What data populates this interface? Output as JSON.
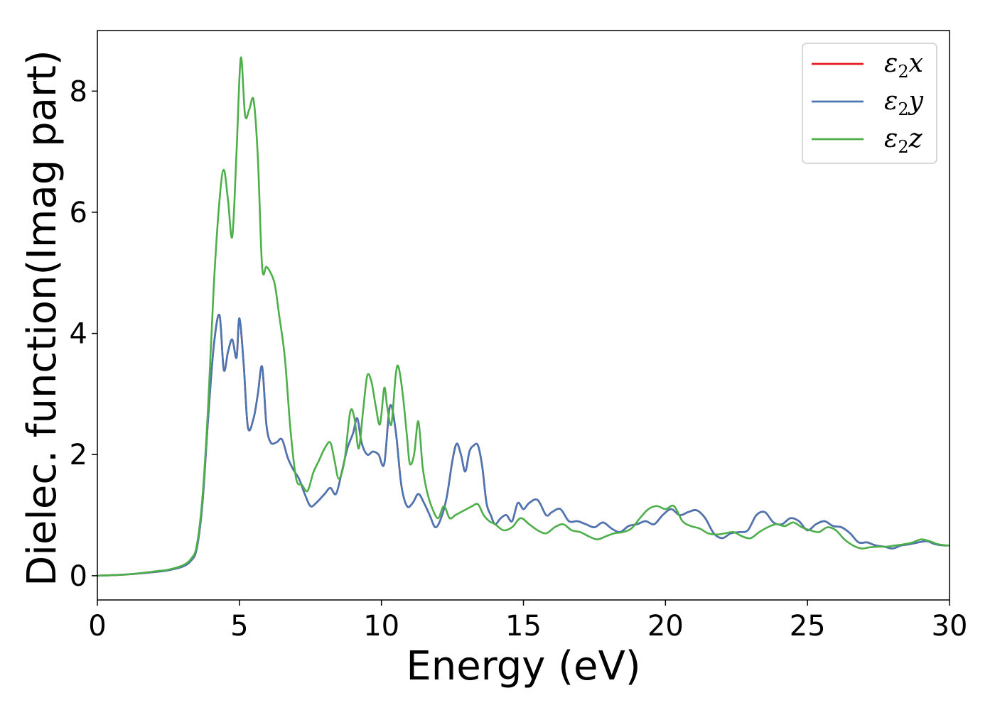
{
  "chart_data": {
    "type": "line",
    "title": "",
    "xlabel": "Energy (eV)",
    "ylabel": "Dielec. function(Imag part)",
    "xlim": [
      0,
      30
    ],
    "ylim": [
      -0.4,
      9.0
    ],
    "xticks": [
      0,
      5,
      10,
      15,
      20,
      25,
      30
    ],
    "xtick_labels": [
      "0",
      "5",
      "10",
      "15",
      "20",
      "25",
      "30"
    ],
    "yticks": [
      0,
      2,
      4,
      6,
      8
    ],
    "ytick_labels": [
      "0",
      "2",
      "4",
      "6",
      "8"
    ],
    "grid": false,
    "legend_position": "top-right",
    "series": [
      {
        "name": "ε2x",
        "legend_symbol": "ε",
        "legend_subscript": "2",
        "legend_var": "x",
        "color": "#e41a1c",
        "x": [
          0,
          1,
          2,
          2.5,
          3,
          3.3,
          3.5,
          3.7,
          3.9,
          4.1,
          4.3,
          4.45,
          4.6,
          4.75,
          4.9,
          5.0,
          5.15,
          5.3,
          5.5,
          5.65,
          5.8,
          5.95,
          6.1,
          6.3,
          6.5,
          6.7,
          6.9,
          7.1,
          7.3,
          7.5,
          7.7,
          8.0,
          8.2,
          8.4,
          8.6,
          8.8,
          9.0,
          9.15,
          9.3,
          9.5,
          9.7,
          9.9,
          10.1,
          10.3,
          10.5,
          10.7,
          10.9,
          11.1,
          11.3,
          11.5,
          11.7,
          11.9,
          12.1,
          12.3,
          12.5,
          12.65,
          12.8,
          12.95,
          13.1,
          13.25,
          13.4,
          13.55,
          13.7,
          13.85,
          14.0,
          14.2,
          14.4,
          14.6,
          14.8,
          15.0,
          15.2,
          15.5,
          15.8,
          16.0,
          16.3,
          16.6,
          16.9,
          17.2,
          17.5,
          17.8,
          18.1,
          18.4,
          18.7,
          19.0,
          19.3,
          19.6,
          19.9,
          20.2,
          20.5,
          20.8,
          21.1,
          21.4,
          21.7,
          22.0,
          22.3,
          22.6,
          22.9,
          23.2,
          23.5,
          23.8,
          24.1,
          24.4,
          24.7,
          25.0,
          25.3,
          25.6,
          25.9,
          26.2,
          26.5,
          26.8,
          27.1,
          27.4,
          27.7,
          28.0,
          28.3,
          28.6,
          28.9,
          29.2,
          29.5,
          29.8,
          30
        ],
        "y": [
          0.0,
          0.02,
          0.06,
          0.09,
          0.15,
          0.25,
          0.45,
          1.2,
          2.6,
          3.8,
          4.3,
          3.4,
          3.7,
          3.9,
          3.6,
          4.25,
          3.5,
          2.45,
          2.6,
          3.0,
          3.45,
          2.5,
          2.2,
          2.2,
          2.25,
          1.95,
          1.75,
          1.6,
          1.35,
          1.15,
          1.2,
          1.35,
          1.45,
          1.35,
          1.7,
          2.1,
          2.35,
          2.6,
          2.2,
          2.0,
          2.05,
          2.0,
          1.85,
          2.8,
          2.4,
          1.5,
          1.15,
          1.2,
          1.35,
          1.2,
          1.0,
          0.8,
          0.95,
          1.3,
          1.9,
          2.18,
          2.0,
          1.72,
          2.05,
          2.15,
          2.15,
          1.8,
          1.2,
          1.0,
          0.85,
          0.95,
          1.0,
          0.9,
          1.2,
          1.1,
          1.2,
          1.25,
          1.0,
          1.05,
          1.1,
          0.9,
          0.9,
          0.85,
          0.8,
          0.88,
          0.78,
          0.72,
          0.82,
          0.85,
          0.9,
          0.85,
          1.0,
          1.1,
          1.0,
          1.05,
          1.08,
          0.95,
          0.7,
          0.62,
          0.7,
          0.72,
          0.75,
          1.0,
          1.05,
          0.88,
          0.85,
          0.95,
          0.9,
          0.75,
          0.85,
          0.9,
          0.82,
          0.8,
          0.7,
          0.55,
          0.55,
          0.5,
          0.48,
          0.45,
          0.5,
          0.52,
          0.55,
          0.57,
          0.52,
          0.5,
          0.5
        ]
      },
      {
        "name": "ε2y",
        "legend_symbol": "ε",
        "legend_subscript": "2",
        "legend_var": "y",
        "color": "#4a77b4",
        "x": [
          0,
          1,
          2,
          2.5,
          3,
          3.3,
          3.5,
          3.7,
          3.9,
          4.1,
          4.3,
          4.45,
          4.6,
          4.75,
          4.9,
          5.0,
          5.15,
          5.3,
          5.5,
          5.65,
          5.8,
          5.95,
          6.1,
          6.3,
          6.5,
          6.7,
          6.9,
          7.1,
          7.3,
          7.5,
          7.7,
          8.0,
          8.2,
          8.4,
          8.6,
          8.8,
          9.0,
          9.15,
          9.3,
          9.5,
          9.7,
          9.9,
          10.1,
          10.3,
          10.5,
          10.7,
          10.9,
          11.1,
          11.3,
          11.5,
          11.7,
          11.9,
          12.1,
          12.3,
          12.5,
          12.65,
          12.8,
          12.95,
          13.1,
          13.25,
          13.4,
          13.55,
          13.7,
          13.85,
          14.0,
          14.2,
          14.4,
          14.6,
          14.8,
          15.0,
          15.2,
          15.5,
          15.8,
          16.0,
          16.3,
          16.6,
          16.9,
          17.2,
          17.5,
          17.8,
          18.1,
          18.4,
          18.7,
          19.0,
          19.3,
          19.6,
          19.9,
          20.2,
          20.5,
          20.8,
          21.1,
          21.4,
          21.7,
          22.0,
          22.3,
          22.6,
          22.9,
          23.2,
          23.5,
          23.8,
          24.1,
          24.4,
          24.7,
          25.0,
          25.3,
          25.6,
          25.9,
          26.2,
          26.5,
          26.8,
          27.1,
          27.4,
          27.7,
          28.0,
          28.3,
          28.6,
          28.9,
          29.2,
          29.5,
          29.8,
          30
        ],
        "y": [
          0.0,
          0.02,
          0.06,
          0.09,
          0.15,
          0.25,
          0.45,
          1.2,
          2.6,
          3.8,
          4.3,
          3.4,
          3.7,
          3.9,
          3.6,
          4.25,
          3.5,
          2.45,
          2.6,
          3.0,
          3.45,
          2.5,
          2.2,
          2.2,
          2.25,
          1.95,
          1.75,
          1.6,
          1.35,
          1.15,
          1.2,
          1.35,
          1.45,
          1.35,
          1.7,
          2.1,
          2.35,
          2.6,
          2.2,
          2.0,
          2.05,
          2.0,
          1.85,
          2.8,
          2.4,
          1.5,
          1.15,
          1.2,
          1.35,
          1.2,
          1.0,
          0.8,
          0.95,
          1.3,
          1.9,
          2.18,
          2.0,
          1.72,
          2.05,
          2.15,
          2.15,
          1.8,
          1.2,
          1.0,
          0.85,
          0.95,
          1.0,
          0.9,
          1.2,
          1.1,
          1.2,
          1.25,
          1.0,
          1.05,
          1.1,
          0.9,
          0.9,
          0.85,
          0.8,
          0.88,
          0.78,
          0.72,
          0.82,
          0.85,
          0.9,
          0.85,
          1.0,
          1.1,
          1.0,
          1.05,
          1.08,
          0.95,
          0.7,
          0.62,
          0.7,
          0.72,
          0.75,
          1.0,
          1.05,
          0.88,
          0.85,
          0.95,
          0.9,
          0.75,
          0.85,
          0.9,
          0.82,
          0.8,
          0.7,
          0.55,
          0.55,
          0.5,
          0.48,
          0.45,
          0.5,
          0.52,
          0.55,
          0.57,
          0.52,
          0.5,
          0.5
        ]
      },
      {
        "name": "ε2z",
        "legend_symbol": "ε",
        "legend_subscript": "2",
        "legend_var": "z",
        "color": "#4daf4a",
        "x": [
          0,
          1,
          2,
          2.5,
          3,
          3.3,
          3.5,
          3.7,
          3.9,
          4.1,
          4.3,
          4.45,
          4.6,
          4.75,
          4.9,
          5.05,
          5.2,
          5.35,
          5.5,
          5.65,
          5.8,
          5.95,
          6.1,
          6.25,
          6.4,
          6.6,
          6.8,
          7.0,
          7.2,
          7.4,
          7.6,
          7.8,
          8.0,
          8.2,
          8.35,
          8.5,
          8.7,
          8.9,
          9.05,
          9.2,
          9.35,
          9.5,
          9.65,
          9.8,
          9.95,
          10.1,
          10.2,
          10.35,
          10.5,
          10.6,
          10.75,
          10.9,
          11.0,
          11.15,
          11.3,
          11.45,
          11.6,
          11.8,
          12.0,
          12.2,
          12.4,
          12.6,
          12.8,
          13.0,
          13.2,
          13.4,
          13.6,
          13.8,
          14.0,
          14.3,
          14.6,
          14.9,
          15.2,
          15.5,
          15.8,
          16.1,
          16.4,
          16.7,
          17.0,
          17.3,
          17.6,
          17.9,
          18.2,
          18.5,
          18.8,
          19.1,
          19.4,
          19.7,
          20.0,
          20.3,
          20.6,
          20.9,
          21.2,
          21.5,
          21.8,
          22.1,
          22.4,
          22.7,
          23.0,
          23.3,
          23.6,
          23.9,
          24.2,
          24.5,
          24.8,
          25.1,
          25.4,
          25.7,
          26.0,
          26.3,
          26.6,
          26.9,
          27.2,
          27.5,
          27.8,
          28.1,
          28.4,
          28.7,
          29.0,
          29.3,
          29.6,
          29.9,
          30
        ],
        "y": [
          0.0,
          0.02,
          0.07,
          0.1,
          0.17,
          0.28,
          0.5,
          1.3,
          2.8,
          4.8,
          6.2,
          6.7,
          6.2,
          5.6,
          7.0,
          8.55,
          7.6,
          7.7,
          7.85,
          6.9,
          5.1,
          5.1,
          5.0,
          4.8,
          4.3,
          3.6,
          2.4,
          1.6,
          1.5,
          1.4,
          1.7,
          1.9,
          2.1,
          2.2,
          1.9,
          1.6,
          1.9,
          2.7,
          2.6,
          2.1,
          2.7,
          3.3,
          3.2,
          2.8,
          2.5,
          3.1,
          2.8,
          2.5,
          3.3,
          3.45,
          3.0,
          2.3,
          1.85,
          2.0,
          2.55,
          1.8,
          1.4,
          1.1,
          0.95,
          1.15,
          0.95,
          1.0,
          1.05,
          1.1,
          1.15,
          1.18,
          1.0,
          0.9,
          0.85,
          0.75,
          0.8,
          0.95,
          0.85,
          0.75,
          0.7,
          0.8,
          0.85,
          0.75,
          0.72,
          0.65,
          0.6,
          0.65,
          0.7,
          0.72,
          0.78,
          0.95,
          1.1,
          1.15,
          1.1,
          1.15,
          0.9,
          0.82,
          0.78,
          0.7,
          0.68,
          0.7,
          0.72,
          0.65,
          0.62,
          0.72,
          0.8,
          0.85,
          0.82,
          0.88,
          0.8,
          0.75,
          0.72,
          0.8,
          0.75,
          0.6,
          0.5,
          0.45,
          0.47,
          0.48,
          0.48,
          0.5,
          0.52,
          0.55,
          0.6,
          0.57,
          0.52,
          0.5,
          0.5
        ]
      }
    ]
  }
}
